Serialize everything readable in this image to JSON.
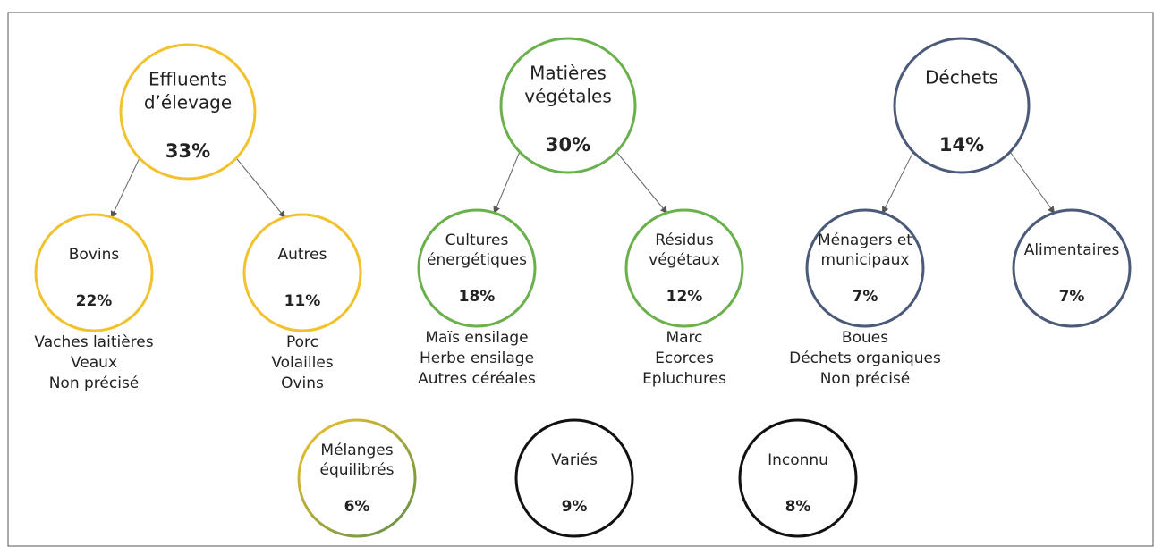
{
  "nodes": [
    {
      "label": [
        "Effluents",
        "d’élevage"
      ],
      "percent": "33%",
      "items": []
    },
    {
      "label": [
        "Matières",
        "végétales"
      ],
      "percent": "30%",
      "items": []
    },
    {
      "label": [
        "Déchets"
      ],
      "percent": "14%",
      "items": []
    },
    {
      "label": [
        "Bovins"
      ],
      "percent": "22%",
      "items": [
        "Vaches laitières",
        "Veaux",
        "Non précisé"
      ]
    },
    {
      "label": [
        "Autres"
      ],
      "percent": "11%",
      "items": [
        "Porc",
        "Volailles",
        "Ovins"
      ]
    },
    {
      "label": [
        "Cultures",
        "énergétiques"
      ],
      "percent": "18%",
      "items": [
        "Maïs ensilage",
        "Herbe ensilage",
        "Autres céréales"
      ]
    },
    {
      "label": [
        "Résidus",
        "végétaux"
      ],
      "percent": "12%",
      "items": [
        "Marc",
        "Ecorces",
        "Epluchures"
      ]
    },
    {
      "label": [
        "Ménagers et",
        "municipaux"
      ],
      "percent": "7%",
      "items": [
        "Boues",
        "Déchets organiques",
        "Non précisé"
      ]
    },
    {
      "label": [
        "Alimentaires"
      ],
      "percent": "7%",
      "items": []
    },
    {
      "label": [
        "Mélanges",
        "équilibrés"
      ],
      "percent": "6%",
      "items": []
    },
    {
      "label": [
        "Variés"
      ],
      "percent": "9%",
      "items": []
    },
    {
      "label": [
        "Inconnu"
      ],
      "percent": "8%",
      "items": []
    }
  ]
}
